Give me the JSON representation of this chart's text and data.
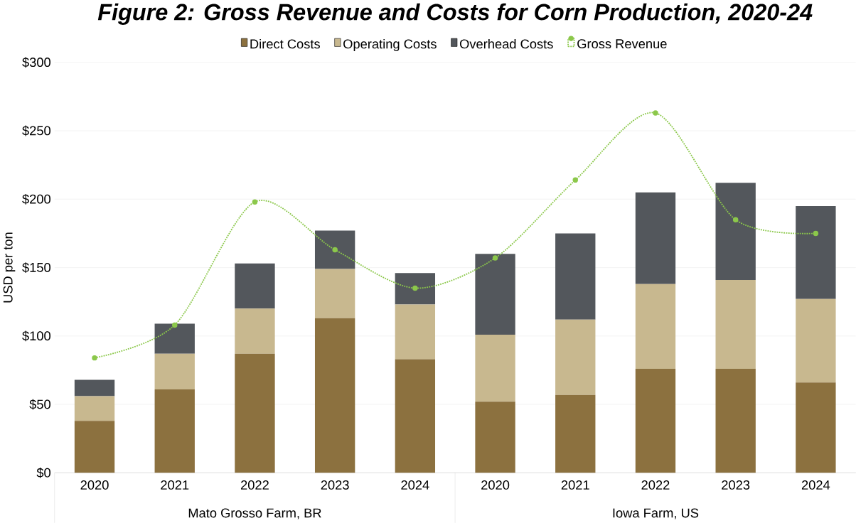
{
  "chart_data": {
    "type": "bar",
    "title": "Figure 2:  Gross Revenue and Costs for Corn Production, 2020-24",
    "ylabel": "USD per ton",
    "categories": [
      "2020",
      "2021",
      "2022",
      "2023",
      "2024",
      "2020",
      "2021",
      "2022",
      "2023",
      "2024"
    ],
    "annotations": [
      "Mato Grosso Farm, BR",
      "Iowa Farm, US"
    ],
    "stacked": true,
    "series": [
      {
        "name": "Direct Costs",
        "color": "#8c713f",
        "values": [
          38,
          61,
          87,
          113,
          83,
          52,
          57,
          76,
          76,
          66
        ]
      },
      {
        "name": "Operating Costs",
        "color": "#c8b88f",
        "values": [
          18,
          26,
          33,
          36,
          40,
          49,
          55,
          62,
          65,
          61
        ]
      },
      {
        "name": "Overhead Costs",
        "color": "#53575c",
        "values": [
          12,
          22,
          33,
          28,
          23,
          59,
          63,
          67,
          71,
          68
        ]
      },
      {
        "name": "Gross Revenue",
        "type": "line",
        "color": "#8cc84b",
        "marker": "circle",
        "line_style": "dotted",
        "values": [
          84,
          108,
          198,
          163,
          135,
          157,
          214,
          263,
          185,
          175
        ]
      }
    ],
    "ylim": [
      0,
      300
    ],
    "yticks": [
      {
        "value": 0,
        "label": "$0"
      },
      {
        "value": 50,
        "label": "$50"
      },
      {
        "value": 100,
        "label": "$100"
      },
      {
        "value": 150,
        "label": "$150"
      },
      {
        "value": 200,
        "label": "$200"
      },
      {
        "value": 250,
        "label": "$250"
      },
      {
        "value": 300,
        "label": "$300"
      }
    ],
    "grid": "y",
    "legend": "top"
  }
}
